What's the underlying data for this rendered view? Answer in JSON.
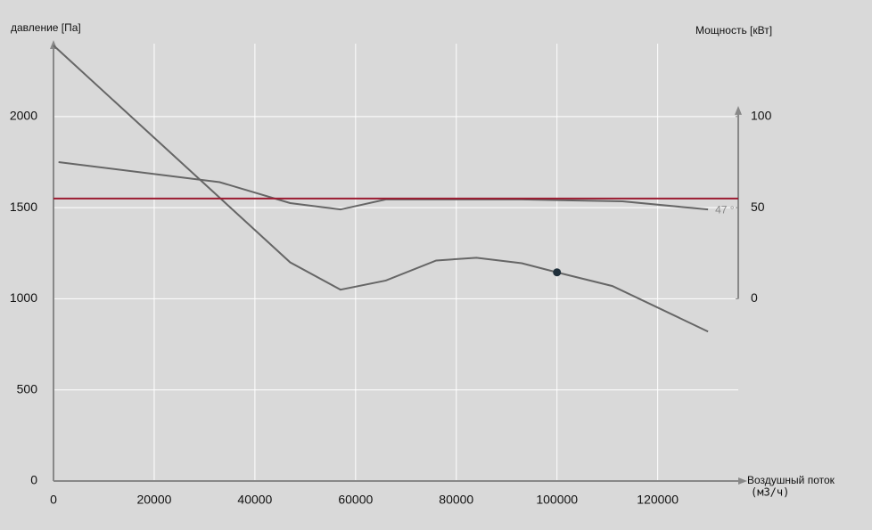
{
  "chart_data": {
    "type": "line",
    "y_label": "давление [Па]",
    "y2_label": "Мощность [кВт]",
    "x_label": "Воздушный поток",
    "x_unit": "(м3/ч)",
    "xlim": [
      0,
      136000
    ],
    "xticks": [
      0,
      20000,
      40000,
      60000,
      80000,
      100000,
      120000
    ],
    "ylim": [
      0,
      2400
    ],
    "yticks": [
      0,
      500,
      1000,
      1500,
      2000
    ],
    "y2lim": [
      -100,
      140
    ],
    "y2ticks": [
      0,
      50,
      100
    ],
    "grid": true,
    "series": [
      {
        "color": "#666666",
        "x": [
          0,
          47000,
          57000,
          66000,
          76000,
          84000,
          93000,
          100000,
          111000,
          130000
        ],
        "values": [
          2390,
          1200,
          1050,
          1100,
          1210,
          1225,
          1195,
          1145,
          1070,
          820
        ]
      },
      {
        "color": "#666666",
        "axis": "y2",
        "x": [
          1000,
          33000,
          47000,
          57000,
          66000,
          93000,
          113000,
          130000
        ],
        "values": [
          75,
          64,
          52.5,
          49,
          54.5,
          54.5,
          53.5,
          49
        ]
      },
      {
        "color": "#9b1b30",
        "x": [
          0,
          136000
        ],
        "values": [
          1550,
          1550
        ]
      }
    ],
    "point": {
      "x": 100000,
      "y": 1145,
      "color": "#1f2f3a"
    },
    "annotation": "47 °"
  }
}
